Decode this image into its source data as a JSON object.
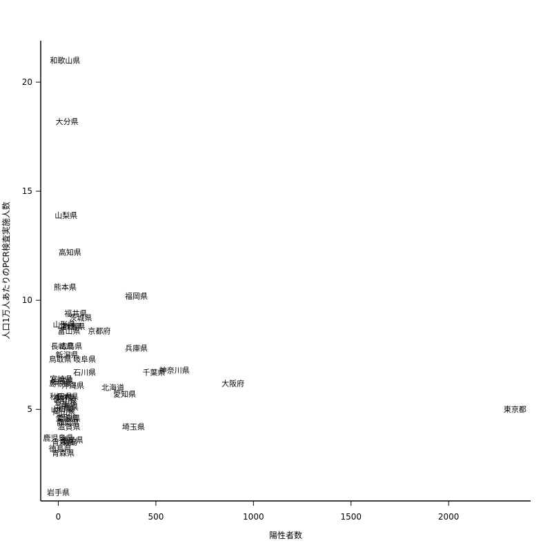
{
  "chart_data": {
    "type": "scatter",
    "xlabel": "陽性者数",
    "ylabel": "人口1万人あたりのPCR検査実施人数",
    "xlim": [
      -90,
      2420
    ],
    "ylim": [
      0.8,
      21.9
    ],
    "xticks": [
      0,
      500,
      1000,
      1500,
      2000
    ],
    "yticks": [
      5,
      10,
      15,
      20
    ],
    "grid": false,
    "point_style": "text-labels",
    "points": [
      {
        "label": "和歌山県",
        "x": 35,
        "y": 21.0
      },
      {
        "label": "大分県",
        "x": 45,
        "y": 18.2
      },
      {
        "label": "山梨県",
        "x": 40,
        "y": 13.9
      },
      {
        "label": "高知県",
        "x": 60,
        "y": 12.2
      },
      {
        "label": "熊本県",
        "x": 35,
        "y": 10.6
      },
      {
        "label": "福岡県",
        "x": 400,
        "y": 10.2
      },
      {
        "label": "福井県",
        "x": 90,
        "y": 9.4
      },
      {
        "label": "茨城県",
        "x": 115,
        "y": 9.2
      },
      {
        "label": "山形県",
        "x": 30,
        "y": 8.9
      },
      {
        "label": "群馬県",
        "x": 80,
        "y": 8.8
      },
      {
        "label": "宮城県",
        "x": 65,
        "y": 8.8
      },
      {
        "label": "富山県",
        "x": 55,
        "y": 8.6
      },
      {
        "label": "京都府",
        "x": 210,
        "y": 8.6
      },
      {
        "label": "長崎県",
        "x": 20,
        "y": 7.9
      },
      {
        "label": "広島県",
        "x": 65,
        "y": 7.9
      },
      {
        "label": "兵庫県",
        "x": 400,
        "y": 7.8
      },
      {
        "label": "新潟県",
        "x": 45,
        "y": 7.5
      },
      {
        "label": "鳥取県",
        "x": 10,
        "y": 7.3
      },
      {
        "label": "岐阜県",
        "x": 135,
        "y": 7.3
      },
      {
        "label": "石川県",
        "x": 135,
        "y": 6.7
      },
      {
        "label": "千葉県",
        "x": 490,
        "y": 6.7
      },
      {
        "label": "神奈川県",
        "x": 595,
        "y": 6.8
      },
      {
        "label": "大阪府",
        "x": 895,
        "y": 6.2
      },
      {
        "label": "宮崎県",
        "x": 15,
        "y": 6.4
      },
      {
        "label": "佐賀県",
        "x": 20,
        "y": 6.3
      },
      {
        "label": "島根県",
        "x": 10,
        "y": 6.2
      },
      {
        "label": "沖縄県",
        "x": 75,
        "y": 6.1
      },
      {
        "label": "北海道",
        "x": 280,
        "y": 6.0
      },
      {
        "label": "愛知県",
        "x": 340,
        "y": 5.7
      },
      {
        "label": "秋田県",
        "x": 15,
        "y": 5.6
      },
      {
        "label": "栃木県",
        "x": 45,
        "y": 5.6
      },
      {
        "label": "長野県",
        "x": 30,
        "y": 5.5
      },
      {
        "label": "香川県",
        "x": 40,
        "y": 5.4
      },
      {
        "label": "三重県",
        "x": 35,
        "y": 5.2
      },
      {
        "label": "福島県",
        "x": 45,
        "y": 5.1
      },
      {
        "label": "山口県",
        "x": 20,
        "y": 5.0
      },
      {
        "label": "岡山県",
        "x": 30,
        "y": 4.9
      },
      {
        "label": "愛媛県",
        "x": 45,
        "y": 4.6
      },
      {
        "label": "奈良県",
        "x": 55,
        "y": 4.6
      },
      {
        "label": "静岡県",
        "x": 50,
        "y": 4.4
      },
      {
        "label": "滋賀県",
        "x": 55,
        "y": 4.2
      },
      {
        "label": "埼玉県",
        "x": 385,
        "y": 4.2
      },
      {
        "label": "東京都",
        "x": 2340,
        "y": 5.0
      },
      {
        "label": "鹿児島県",
        "x": 0,
        "y": 3.7
      },
      {
        "label": "徳島県",
        "x": 70,
        "y": 3.6
      },
      {
        "label": "青森県",
        "x": 25,
        "y": 3.5
      },
      {
        "label": "福島",
        "x": 60,
        "y": 3.5
      },
      {
        "label": "徳島県",
        "x": 10,
        "y": 3.2
      },
      {
        "label": "青森県",
        "x": 25,
        "y": 3.0
      },
      {
        "label": "岩手県",
        "x": 0,
        "y": 1.2
      }
    ]
  }
}
